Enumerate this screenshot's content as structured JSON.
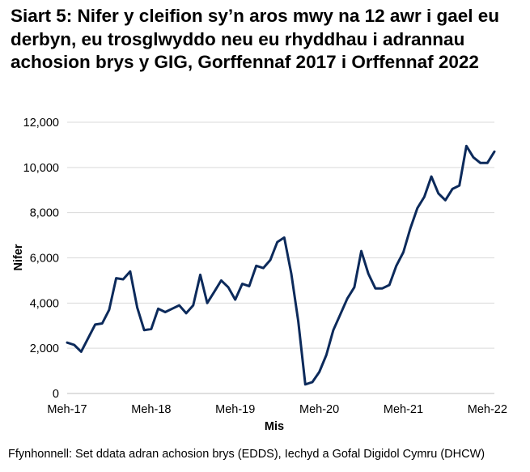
{
  "chart_data": {
    "type": "line",
    "title": "Siart 5: Nifer y cleifion sy’n aros mwy na 12 awr i gael eu derbyn, eu trosglwyddo neu eu rhyddhau i adrannau achosion brys y GIG, Gorffennaf 2017 i Orffennaf 2022",
    "xlabel": "Mis",
    "ylabel": "Nifer",
    "ylim": [
      0,
      12000
    ],
    "yticks": [
      0,
      2000,
      4000,
      6000,
      8000,
      10000,
      12000
    ],
    "ytick_labels": [
      "0",
      "2,000",
      "4,000",
      "6,000",
      "8,000",
      "10,000",
      "12,000"
    ],
    "xticks": [
      {
        "index": 0,
        "label": "Meh-17"
      },
      {
        "index": 12,
        "label": "Meh-18"
      },
      {
        "index": 24,
        "label": "Meh-19"
      },
      {
        "index": 36,
        "label": "Meh-20"
      },
      {
        "index": 48,
        "label": "Meh-21"
      },
      {
        "index": 60,
        "label": "Meh-22"
      }
    ],
    "grid": true,
    "line_color": "#0c2a5b",
    "grid_color": "#d9d9d9",
    "series": [
      {
        "values": [
          2250,
          2150,
          1850,
          2450,
          3050,
          3100,
          3700,
          5100,
          5050,
          5400,
          3800,
          2800,
          2850,
          3750,
          3600,
          3750,
          3900,
          3550,
          3900,
          5250,
          4000,
          4500,
          5000,
          4700,
          4150,
          4850,
          4750,
          5650,
          5550,
          5900,
          6700,
          6900,
          5300,
          3200,
          400,
          500,
          950,
          1700,
          2800,
          3500,
          4200,
          4700,
          6300,
          5300,
          4650,
          4650,
          4800,
          5650,
          6250,
          7300,
          8200,
          8700,
          9600,
          8850,
          8550,
          9050,
          9200,
          10950,
          10450,
          10200,
          10200,
          10700
        ]
      }
    ]
  },
  "source_note": "Ffynhonnell: Set ddata adran achosion brys (EDDS), Iechyd a Gofal Digidol Cymru (DHCW)"
}
